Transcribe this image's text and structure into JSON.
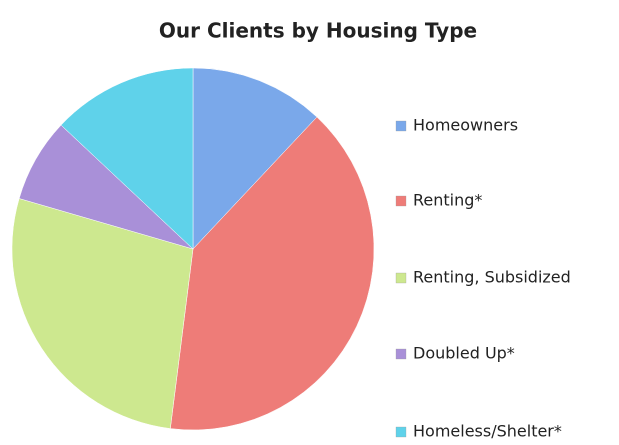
{
  "chart_data": {
    "type": "pie",
    "title": "Our Clients by Housing Type",
    "categories": [
      "Homeowners",
      "Renting*",
      "Renting, Subsidized",
      "Doubled Up*",
      "Homeless/Shelter*"
    ],
    "values": [
      12,
      40,
      27.5,
      7.5,
      13
    ],
    "colors": [
      "#7aa8ea",
      "#ee7c78",
      "#cde88f",
      "#a990d8",
      "#5fd2ea"
    ],
    "legend": "right"
  }
}
